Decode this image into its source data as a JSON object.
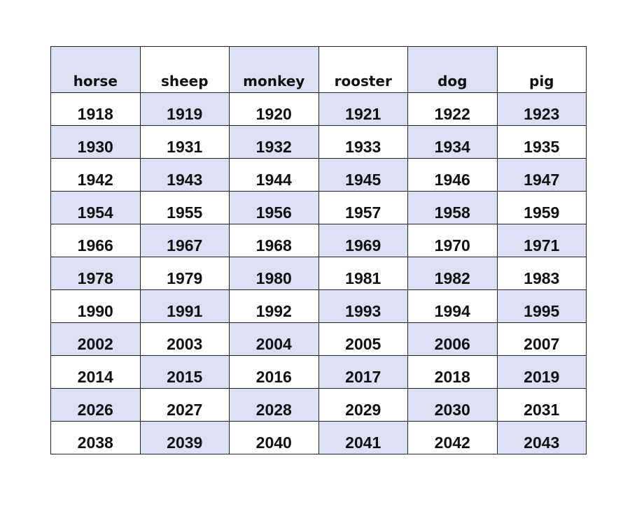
{
  "table": {
    "header": [
      "horse",
      "sheep",
      "monkey",
      "rooster",
      "dog",
      "pig"
    ],
    "rows": [
      [
        1918,
        1919,
        1920,
        1921,
        1922,
        1923
      ],
      [
        1930,
        1931,
        1932,
        1933,
        1934,
        1935
      ],
      [
        1942,
        1943,
        1944,
        1945,
        1946,
        1947
      ],
      [
        1954,
        1955,
        1956,
        1957,
        1958,
        1959
      ],
      [
        1966,
        1967,
        1968,
        1969,
        1970,
        1971
      ],
      [
        1978,
        1979,
        1980,
        1981,
        1982,
        1983
      ],
      [
        1990,
        1991,
        1992,
        1993,
        1994,
        1995
      ],
      [
        2002,
        2003,
        2004,
        2005,
        2006,
        2007
      ],
      [
        2014,
        2015,
        2016,
        2017,
        2018,
        2019
      ],
      [
        2026,
        2027,
        2028,
        2029,
        2030,
        2031
      ],
      [
        2038,
        2039,
        2040,
        2041,
        2042,
        2043
      ]
    ]
  }
}
